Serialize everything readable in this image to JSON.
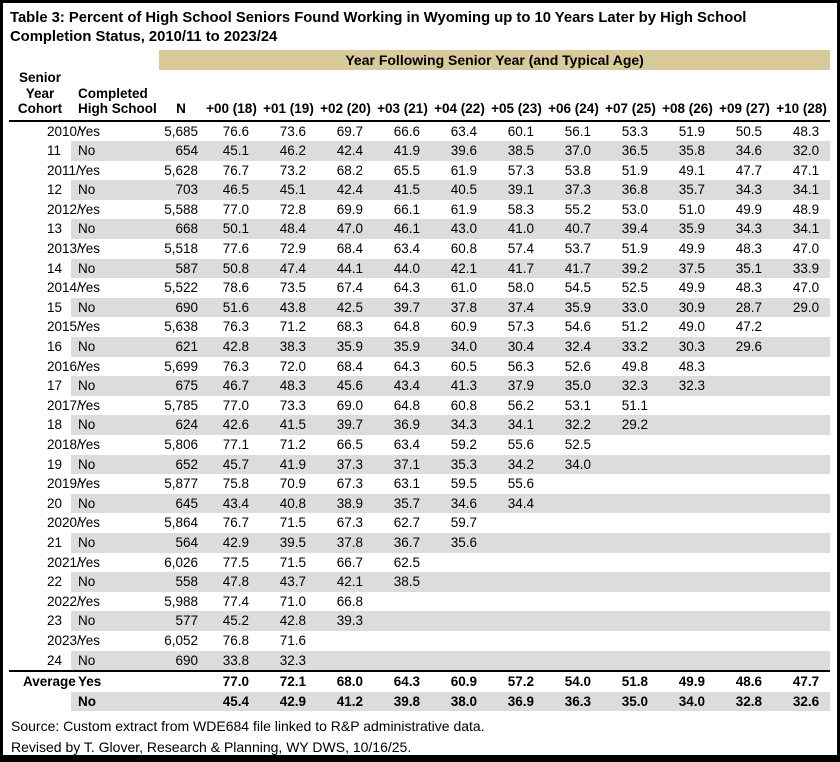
{
  "title": "Table 3: Percent of High School Seniors Found Working in Wyoming up to 10 Years Later by High School Completion Status, 2010/11 to 2023/24",
  "colors": {
    "header_band_bg": "#d9ca9c",
    "stripe_bg": "#dbdcde",
    "border": "#000000",
    "text": "#000000"
  },
  "table": {
    "span_header": "Year Following Senior Year (and Typical Age)",
    "col_headers": {
      "cohort": "Senior\nYear\nCohort",
      "completed": "Completed\nHigh School",
      "n": "N",
      "years": [
        "+00 (18)",
        "+01 (19)",
        "+02 (20)",
        "+03 (21)",
        "+04 (22)",
        "+05 (23)",
        "+06 (24)",
        "+07 (25)",
        "+08 (26)",
        "+09 (27)",
        "+10 (28)"
      ]
    },
    "cohorts": [
      {
        "cohort": "2010/11",
        "rows": [
          {
            "completed": "Yes",
            "n": "5,685",
            "values": [
              "76.6",
              "73.6",
              "69.7",
              "66.6",
              "63.4",
              "60.1",
              "56.1",
              "53.3",
              "51.9",
              "50.5",
              "48.3"
            ]
          },
          {
            "completed": "No",
            "n": "654",
            "values": [
              "45.1",
              "46.2",
              "42.4",
              "41.9",
              "39.6",
              "38.5",
              "37.0",
              "36.5",
              "35.8",
              "34.6",
              "32.0"
            ]
          }
        ]
      },
      {
        "cohort": "2011/12",
        "rows": [
          {
            "completed": "Yes",
            "n": "5,628",
            "values": [
              "76.7",
              "73.2",
              "68.2",
              "65.5",
              "61.9",
              "57.3",
              "53.8",
              "51.9",
              "49.1",
              "47.7",
              "47.1"
            ]
          },
          {
            "completed": "No",
            "n": "703",
            "values": [
              "46.5",
              "45.1",
              "42.4",
              "41.5",
              "40.5",
              "39.1",
              "37.3",
              "36.8",
              "35.7",
              "34.3",
              "34.1"
            ]
          }
        ]
      },
      {
        "cohort": "2012/13",
        "rows": [
          {
            "completed": "Yes",
            "n": "5,588",
            "values": [
              "77.0",
              "72.8",
              "69.9",
              "66.1",
              "61.9",
              "58.3",
              "55.2",
              "53.0",
              "51.0",
              "49.9",
              "48.9"
            ]
          },
          {
            "completed": "No",
            "n": "668",
            "values": [
              "50.1",
              "48.4",
              "47.0",
              "46.1",
              "43.0",
              "41.0",
              "40.7",
              "39.4",
              "35.9",
              "34.3",
              "34.1"
            ]
          }
        ]
      },
      {
        "cohort": "2013/14",
        "rows": [
          {
            "completed": "Yes",
            "n": "5,518",
            "values": [
              "77.6",
              "72.9",
              "68.4",
              "63.4",
              "60.8",
              "57.4",
              "53.7",
              "51.9",
              "49.9",
              "48.3",
              "47.0"
            ]
          },
          {
            "completed": "No",
            "n": "587",
            "values": [
              "50.8",
              "47.4",
              "44.1",
              "44.0",
              "42.1",
              "41.7",
              "41.7",
              "39.2",
              "37.5",
              "35.1",
              "33.9"
            ]
          }
        ]
      },
      {
        "cohort": "2014/15",
        "rows": [
          {
            "completed": "Yes",
            "n": "5,522",
            "values": [
              "78.6",
              "73.5",
              "67.4",
              "64.3",
              "61.0",
              "58.0",
              "54.5",
              "52.5",
              "49.9",
              "48.3",
              "47.0"
            ]
          },
          {
            "completed": "No",
            "n": "690",
            "values": [
              "51.6",
              "43.8",
              "42.5",
              "39.7",
              "37.8",
              "37.4",
              "35.9",
              "33.0",
              "30.9",
              "28.7",
              "29.0"
            ]
          }
        ]
      },
      {
        "cohort": "2015/16",
        "rows": [
          {
            "completed": "Yes",
            "n": "5,638",
            "values": [
              "76.3",
              "71.2",
              "68.3",
              "64.8",
              "60.9",
              "57.3",
              "54.6",
              "51.2",
              "49.0",
              "47.2"
            ]
          },
          {
            "completed": "No",
            "n": "621",
            "values": [
              "42.8",
              "38.3",
              "35.9",
              "35.9",
              "34.0",
              "30.4",
              "32.4",
              "33.2",
              "30.3",
              "29.6"
            ]
          }
        ]
      },
      {
        "cohort": "2016/17",
        "rows": [
          {
            "completed": "Yes",
            "n": "5,699",
            "values": [
              "76.3",
              "72.0",
              "68.4",
              "64.3",
              "60.5",
              "56.3",
              "52.6",
              "49.8",
              "48.3"
            ]
          },
          {
            "completed": "No",
            "n": "675",
            "values": [
              "46.7",
              "48.3",
              "45.6",
              "43.4",
              "41.3",
              "37.9",
              "35.0",
              "32.3",
              "32.3"
            ]
          }
        ]
      },
      {
        "cohort": "2017/18",
        "rows": [
          {
            "completed": "Yes",
            "n": "5,785",
            "values": [
              "77.0",
              "73.3",
              "69.0",
              "64.8",
              "60.8",
              "56.2",
              "53.1",
              "51.1"
            ]
          },
          {
            "completed": "No",
            "n": "624",
            "values": [
              "42.6",
              "41.5",
              "39.7",
              "36.9",
              "34.3",
              "34.1",
              "32.2",
              "29.2"
            ]
          }
        ]
      },
      {
        "cohort": "2018/19",
        "rows": [
          {
            "completed": "Yes",
            "n": "5,806",
            "values": [
              "77.1",
              "71.2",
              "66.5",
              "63.4",
              "59.2",
              "55.6",
              "52.5"
            ]
          },
          {
            "completed": "No",
            "n": "652",
            "values": [
              "45.7",
              "41.9",
              "37.3",
              "37.1",
              "35.3",
              "34.2",
              "34.0"
            ]
          }
        ]
      },
      {
        "cohort": "2019/20",
        "rows": [
          {
            "completed": "Yes",
            "n": "5,877",
            "values": [
              "75.8",
              "70.9",
              "67.3",
              "63.1",
              "59.5",
              "55.6"
            ]
          },
          {
            "completed": "No",
            "n": "645",
            "values": [
              "43.4",
              "40.8",
              "38.9",
              "35.7",
              "34.6",
              "34.4"
            ]
          }
        ]
      },
      {
        "cohort": "2020/21",
        "rows": [
          {
            "completed": "Yes",
            "n": "5,864",
            "values": [
              "76.7",
              "71.5",
              "67.3",
              "62.7",
              "59.7"
            ]
          },
          {
            "completed": "No",
            "n": "564",
            "values": [
              "42.9",
              "39.5",
              "37.8",
              "36.7",
              "35.6"
            ]
          }
        ]
      },
      {
        "cohort": "2021/22",
        "rows": [
          {
            "completed": "Yes",
            "n": "6,026",
            "values": [
              "77.5",
              "71.5",
              "66.7",
              "62.5"
            ]
          },
          {
            "completed": "No",
            "n": "558",
            "values": [
              "47.8",
              "43.7",
              "42.1",
              "38.5"
            ]
          }
        ]
      },
      {
        "cohort": "2022/23",
        "rows": [
          {
            "completed": "Yes",
            "n": "5,988",
            "values": [
              "77.4",
              "71.0",
              "66.8"
            ]
          },
          {
            "completed": "No",
            "n": "577",
            "values": [
              "45.2",
              "42.8",
              "39.3"
            ]
          }
        ]
      },
      {
        "cohort": "2023/24",
        "rows": [
          {
            "completed": "Yes",
            "n": "6,052",
            "values": [
              "76.8",
              "71.6"
            ]
          },
          {
            "completed": "No",
            "n": "690",
            "values": [
              "33.8",
              "32.3"
            ]
          }
        ]
      }
    ],
    "average": {
      "label": "Average",
      "rows": [
        {
          "completed": "Yes",
          "n": "",
          "values": [
            "77.0",
            "72.1",
            "68.0",
            "64.3",
            "60.9",
            "57.2",
            "54.0",
            "51.8",
            "49.9",
            "48.6",
            "47.7"
          ]
        },
        {
          "completed": "No",
          "n": "",
          "values": [
            "45.4",
            "42.9",
            "41.2",
            "39.8",
            "38.0",
            "36.9",
            "36.3",
            "35.0",
            "34.0",
            "32.8",
            "32.6"
          ]
        }
      ]
    }
  },
  "footer": {
    "source": "Source: Custom extract from WDE684 file linked to R&P administrative data.",
    "revised": "Revised by T. Glover, Research & Planning, WY DWS, 10/16/25."
  }
}
